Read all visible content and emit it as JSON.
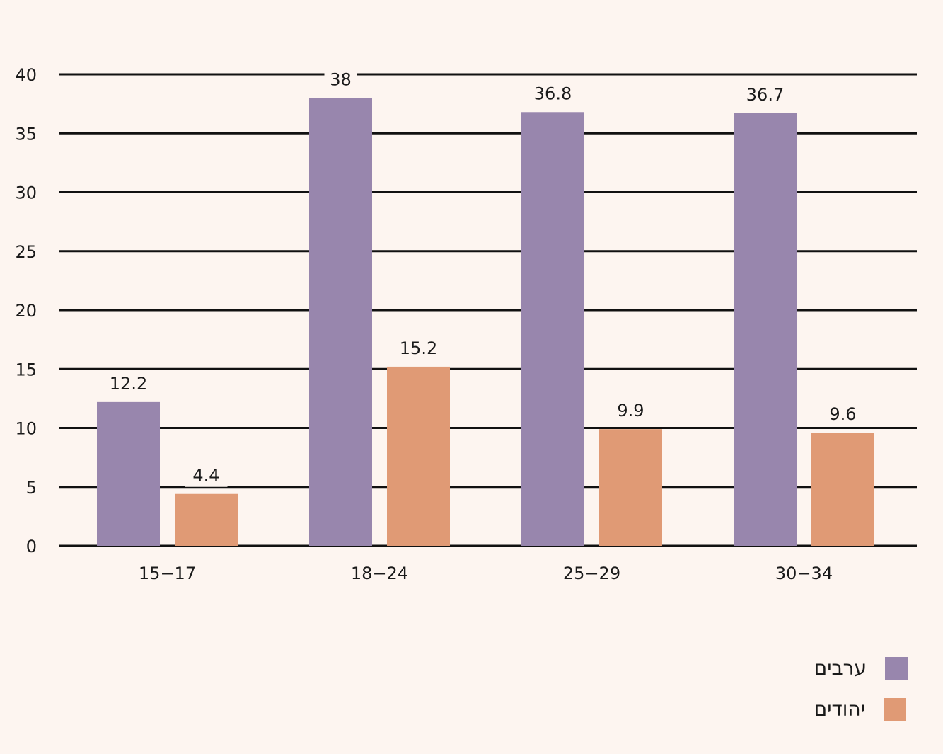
{
  "colors": {
    "background": "#fdf5f0",
    "grid": "#111111",
    "label_bg": "#fdf5f0"
  },
  "chart_data": {
    "type": "bar",
    "categories": [
      "15-17",
      "18-24",
      "25-29",
      "30-34"
    ],
    "series": [
      {
        "name": "ערבים",
        "color": "#9886ad",
        "values": [
          12.2,
          38,
          36.8,
          36.7
        ]
      },
      {
        "name": "יהודים",
        "color": "#e09a75",
        "values": [
          4.4,
          15.2,
          9.9,
          9.6
        ]
      }
    ],
    "yticks": [
      0,
      5,
      10,
      15,
      20,
      25,
      30,
      35,
      40
    ],
    "ylim": [
      0,
      40
    ],
    "title": "",
    "xlabel": "",
    "ylabel": "",
    "grid": true,
    "legend": "bottom-right"
  }
}
